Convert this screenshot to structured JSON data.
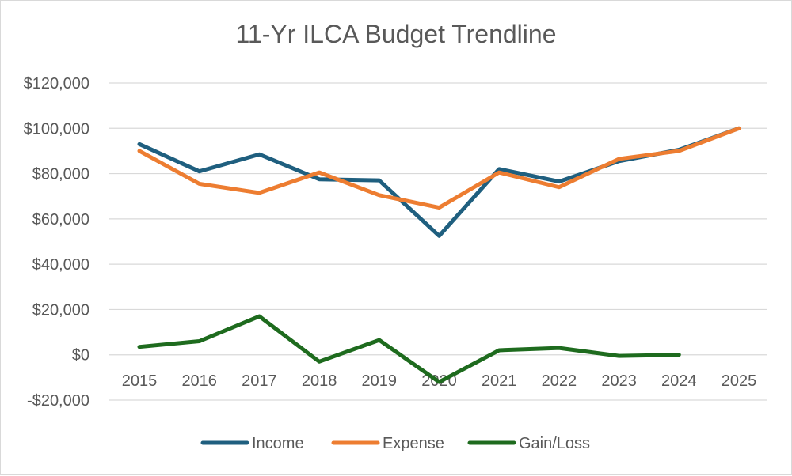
{
  "chart_data": {
    "type": "line",
    "title": "11-Yr ILCA Budget Trendline",
    "xlabel": "",
    "ylabel": "",
    "categories": [
      "2015",
      "2016",
      "2017",
      "2018",
      "2019",
      "2020",
      "2021",
      "2022",
      "2023",
      "2024",
      "2025"
    ],
    "ylim": [
      -20000,
      120000
    ],
    "yticks": [
      -20000,
      0,
      20000,
      40000,
      60000,
      80000,
      100000,
      120000
    ],
    "ytick_labels": [
      "-$20,000",
      "$0",
      "$20,000",
      "$40,000",
      "$60,000",
      "$80,000",
      "$100,000",
      "$120,000"
    ],
    "grid": true,
    "legend_position": "bottom",
    "series": [
      {
        "name": "Income",
        "color": "#1f5f7f",
        "values": [
          93000,
          81000,
          88500,
          77500,
          77000,
          52500,
          82000,
          76500,
          85500,
          90500,
          100000
        ]
      },
      {
        "name": "Expense",
        "color": "#ed7d31",
        "values": [
          90000,
          75500,
          71500,
          80500,
          70500,
          65000,
          80500,
          74000,
          86500,
          90000,
          100000
        ]
      },
      {
        "name": "Gain/Loss",
        "color": "#1e6b1e",
        "values": [
          3500,
          6000,
          17000,
          -3000,
          6500,
          -12000,
          2000,
          3000,
          -500,
          0,
          null
        ]
      }
    ]
  }
}
